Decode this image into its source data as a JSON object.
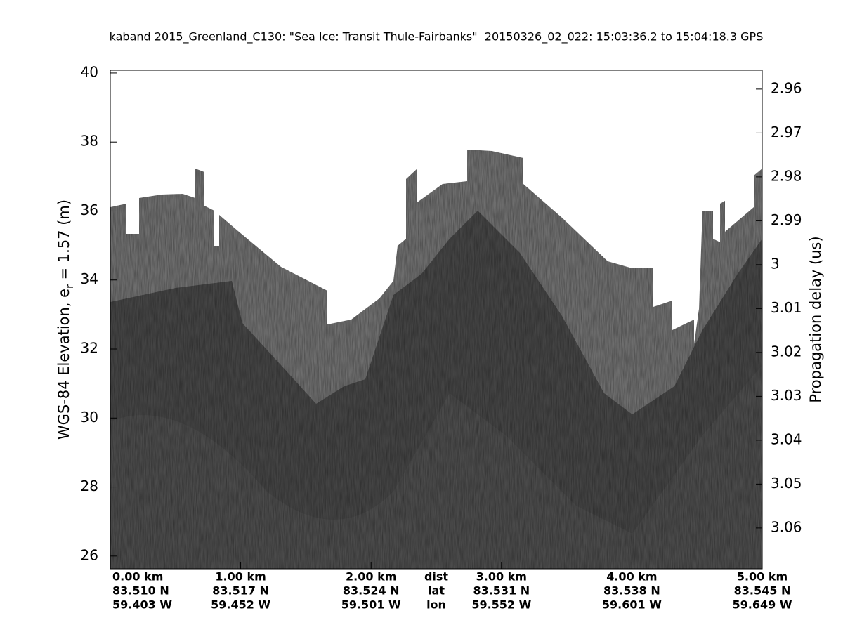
{
  "chart_data": {
    "type": "echogram",
    "title": "kaband 2015_Greenland_C130: \"Sea Ice: Transit Thule-Fairbanks\"  20150326_02_022: 15:03:36.2 to 15:04:18.3 GPS",
    "ylabel_parts": [
      "WGS-84 Elevation, e",
      "r",
      " = 1.57 (m)"
    ],
    "y2label": "Propagation delay (us)",
    "ylim": [
      25.63,
      40.08
    ],
    "yticks": [
      26,
      28,
      30,
      32,
      34,
      36,
      38,
      40
    ],
    "y2lim": [
      3.0693,
      2.9557
    ],
    "y2ticks": [
      2.96,
      2.97,
      2.98,
      2.99,
      3,
      3.01,
      3.02,
      3.03,
      3.04,
      3.05,
      3.06
    ],
    "xlim": [
      0,
      5
    ],
    "xticks": [
      {
        "value": 0,
        "label": "0.00 km"
      },
      {
        "value": 1,
        "label": "1.00 km"
      },
      {
        "value": 2,
        "label": "2.00 km"
      },
      {
        "value": 3,
        "label": "3.00 km"
      },
      {
        "value": 4,
        "label": "4.00 km"
      },
      {
        "value": 5,
        "label": "5.00 km"
      }
    ],
    "lat_labels": [
      "83.510 N",
      "83.517 N",
      "83.524 N",
      "83.531 N",
      "83.538 N",
      "83.545 N"
    ],
    "lon_labels": [
      "59.403 W",
      "59.452 W",
      "59.501 W",
      "59.552 W",
      "59.601 W",
      "59.649 W"
    ],
    "row_labels": [
      "dist",
      "lat",
      "lon"
    ]
  }
}
